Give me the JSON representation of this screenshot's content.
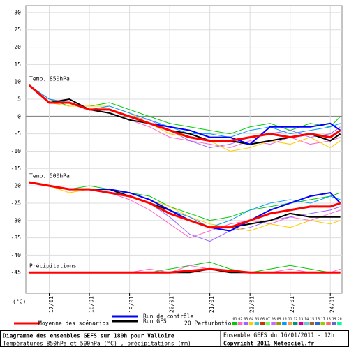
{
  "chart_data": {
    "type": "line",
    "title": "Diagramme des ensembles GEFS sur 180h pour Valloire",
    "subtitle": "Températures 850hPa et 500hPa (°C) , précipitations (mm)",
    "run_info": "Ensemble GEFS du 16/01/2011 - 12h",
    "copyright": "Copyright 2011 Meteociel.fr",
    "y_label": "(°C)",
    "grid": true,
    "xlim": [
      -2,
      187
    ],
    "ylim": [
      -51,
      32
    ],
    "yticks": [
      30,
      25,
      20,
      15,
      10,
      5,
      0,
      -5,
      -10,
      -15,
      -20,
      -25,
      -30,
      -35,
      -40,
      -45
    ],
    "xticks": [
      {
        "value": 12,
        "label": "17/01"
      },
      {
        "value": 36,
        "label": "18/01"
      },
      {
        "value": 60,
        "label": "19/01"
      },
      {
        "value": 84,
        "label": "20/01"
      },
      {
        "value": 108,
        "label": "21/01"
      },
      {
        "value": 132,
        "label": "22/01"
      },
      {
        "value": 156,
        "label": "23/01"
      },
      {
        "value": 180,
        "label": "24/01"
      }
    ],
    "x": [
      0,
      12,
      24,
      36,
      48,
      60,
      72,
      84,
      96,
      108,
      120,
      132,
      144,
      156,
      168,
      180,
      186
    ],
    "legend": [
      {
        "name": "Run de contrôle",
        "color": "#0000ff"
      },
      {
        "name": "Run GFS",
        "color": "#000000"
      },
      {
        "name": "Moyenne des scénarios",
        "color": "#ff0000"
      }
    ],
    "perturbations": {
      "label": "20 Perturbations",
      "ids": [
        "01",
        "02",
        "03",
        "04",
        "05",
        "06",
        "07",
        "08",
        "09",
        "10",
        "11",
        "12",
        "13",
        "14",
        "15",
        "16",
        "17",
        "18",
        "19",
        "20"
      ],
      "colors": [
        "#00cc00",
        "#ff66cc",
        "#9966ff",
        "#ffcc00",
        "#33cccc",
        "#cc3300",
        "#66ff66",
        "#cc66ff",
        "#999900",
        "#0099ff",
        "#ff9933",
        "#009966",
        "#cc0099",
        "#66cccc",
        "#996633",
        "#3366cc",
        "#99cc00",
        "#ff6666",
        "#6666cc",
        "#00ff99"
      ]
    },
    "panels": [
      {
        "label": "Temp. 850hPa",
        "series": [
          {
            "color": "#00cc00",
            "values": [
              9,
              5,
              3,
              3,
              4,
              2,
              0,
              -2,
              -3,
              -4,
              -5,
              -3,
              -2,
              -4,
              -2,
              -3,
              0
            ]
          },
          {
            "color": "#ff66cc",
            "values": [
              9,
              4,
              4,
              2,
              1,
              -1,
              -3,
              -6,
              -7,
              -8,
              -9,
              -7,
              -8,
              -6,
              -8,
              -7,
              -6
            ]
          },
          {
            "color": "#9966ff",
            "values": [
              9,
              5,
              4,
              2,
              2,
              0,
              -1,
              -4,
              -7,
              -9,
              -8,
              -6,
              -5,
              -4,
              -6,
              -5,
              -3
            ]
          },
          {
            "color": "#ffcc00",
            "values": [
              9,
              4,
              3,
              3,
              3,
              1,
              -2,
              -5,
              -6,
              -7,
              -10,
              -9,
              -7,
              -8,
              -6,
              -9,
              -7
            ]
          },
          {
            "color": "#0099ff",
            "values": [
              9,
              5,
              4,
              2,
              3,
              1,
              -1,
              -3,
              -5,
              -5,
              -6,
              -4,
              -3,
              -5,
              -4,
              -3,
              -2
            ]
          },
          {
            "color": "#000000",
            "width": 2,
            "values": [
              9,
              4,
              5,
              2,
              1,
              -1,
              -2,
              -4,
              -5,
              -7,
              -7,
              -8,
              -7,
              -6,
              -5,
              -7,
              -5
            ]
          },
          {
            "color": "#0000ff",
            "width": 2,
            "values": [
              9,
              4,
              4,
              2,
              2,
              0,
              -2,
              -3,
              -4,
              -6,
              -6,
              -8,
              -3,
              -3,
              -3,
              -2,
              -4
            ]
          },
          {
            "color": "#ff0000",
            "width": 3,
            "values": [
              9,
              4,
              4,
              2,
              2,
              0,
              -2,
              -4,
              -6,
              -7,
              -7,
              -6,
              -5,
              -6,
              -5,
              -6,
              -4
            ]
          }
        ]
      },
      {
        "label": "Temp. 500hPa",
        "series": [
          {
            "color": "#00cc00",
            "values": [
              -19,
              -20,
              -21,
              -20,
              -21,
              -22,
              -23,
              -26,
              -28,
              -30,
              -29,
              -27,
              -26,
              -25,
              -24,
              -23,
              -22
            ]
          },
          {
            "color": "#ff66cc",
            "values": [
              -19,
              -20,
              -21,
              -21,
              -22,
              -24,
              -27,
              -31,
              -35,
              -33,
              -31,
              -30,
              -31,
              -29,
              -30,
              -28,
              -27
            ]
          },
          {
            "color": "#9966ff",
            "values": [
              -19,
              -20,
              -21,
              -21,
              -22,
              -23,
              -25,
              -29,
              -34,
              -36,
              -33,
              -32,
              -30,
              -29,
              -28,
              -27,
              -26
            ]
          },
          {
            "color": "#ffcc00",
            "values": [
              -19,
              -20,
              -22,
              -21,
              -21,
              -22,
              -24,
              -26,
              -29,
              -31,
              -32,
              -33,
              -31,
              -32,
              -30,
              -31,
              -30
            ]
          },
          {
            "color": "#0099ff",
            "values": [
              -19,
              -20,
              -21,
              -21,
              -22,
              -22,
              -24,
              -27,
              -29,
              -32,
              -30,
              -27,
              -25,
              -24,
              -25,
              -23,
              -24
            ]
          },
          {
            "color": "#000000",
            "width": 2,
            "values": [
              -19,
              -20,
              -21,
              -21,
              -21,
              -23,
              -25,
              -27,
              -30,
              -32,
              -32,
              -31,
              -30,
              -28,
              -29,
              -29,
              -29
            ]
          },
          {
            "color": "#0000ff",
            "width": 2,
            "values": [
              -19,
              -20,
              -21,
              -21,
              -21,
              -22,
              -24,
              -27,
              -30,
              -32,
              -33,
              -30,
              -27,
              -25,
              -23,
              -22,
              -25
            ]
          },
          {
            "color": "#ff0000",
            "width": 3,
            "values": [
              -19,
              -20,
              -21,
              -21,
              -22,
              -23,
              -25,
              -28,
              -30,
              -32,
              -32,
              -30,
              -28,
              -27,
              -26,
              -26,
              -25
            ]
          }
        ]
      },
      {
        "label": "Précipitations",
        "series": [
          {
            "color": "#00cc00",
            "values": [
              -45,
              -45,
              -45,
              -45,
              -45,
              -45,
              -45,
              -44,
              -43,
              -42,
              -44,
              -45,
              -44,
              -43,
              -44,
              -45,
              -45
            ]
          },
          {
            "color": "#ff66cc",
            "values": [
              -45,
              -45,
              -45,
              -45,
              -45,
              -45,
              -44,
              -45,
              -43,
              -44,
              -45,
              -45,
              -45,
              -44,
              -45,
              -45,
              -44
            ]
          },
          {
            "color": "#000000",
            "width": 2,
            "values": [
              -45,
              -45,
              -45,
              -45,
              -45,
              -45,
              -45,
              -45,
              -45,
              -44,
              -45,
              -45,
              -45,
              -45,
              -45,
              -45,
              -45
            ]
          },
          {
            "color": "#ff0000",
            "width": 3,
            "values": [
              -45,
              -45,
              -45,
              -45,
              -45,
              -45,
              -45,
              -45,
              -44.5,
              -44,
              -44.5,
              -45,
              -45,
              -45,
              -45,
              -45,
              -45
            ]
          }
        ]
      }
    ]
  }
}
